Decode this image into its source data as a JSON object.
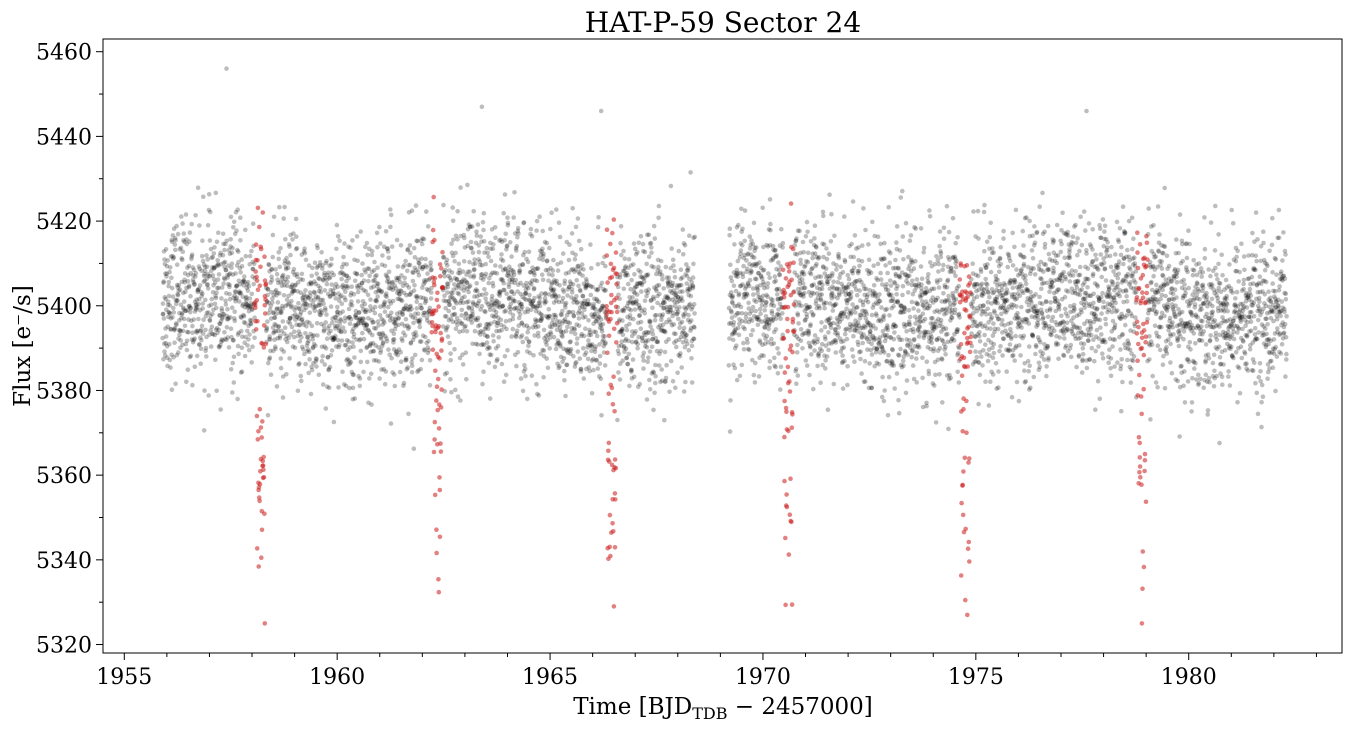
{
  "chart_data": {
    "type": "scatter",
    "title": "HAT-P-59 Sector 24",
    "xlabel": {
      "prefix": "Time [BJD",
      "subscript": "TDB",
      "suffix": " − 2457000]"
    },
    "ylabel": "Flux [e⁻/s]",
    "xlim": [
      1954.5,
      1983.6
    ],
    "ylim": [
      5318,
      5463
    ],
    "x_ticks": [
      1955,
      1960,
      1965,
      1970,
      1975,
      1980
    ],
    "x_tick_labels": [
      "1955",
      "1960",
      "1965",
      "1970",
      "1975",
      "1980"
    ],
    "y_ticks": [
      5320,
      5340,
      5360,
      5380,
      5400,
      5420,
      5440,
      5460
    ],
    "y_tick_labels": [
      "5320",
      "5340",
      "5360",
      "5380",
      "5400",
      "5420",
      "5440",
      "5460"
    ],
    "x_minor_step": 1,
    "y_minor_step": 10,
    "grid": false,
    "legend": "none",
    "series": [
      {
        "color": "#000000",
        "segments": [
          [
            1955.9,
            1968.4
          ],
          [
            1969.2,
            1982.3
          ]
        ],
        "cadence_days": 0.00139,
        "baseline_flux": 5400,
        "scatter_sigma": 9
      },
      {
        "color": "#cc1a1a",
        "transit_times": [
          1958.2,
          1962.35,
          1966.45,
          1970.6,
          1974.75,
          1978.9
        ],
        "transit_half_width_days": 0.13,
        "transit_depth": 60
      }
    ],
    "sample_points": [
      {
        "x": 1957.4,
        "y": 5456
      },
      {
        "x": 1963.4,
        "y": 5447
      },
      {
        "x": 1966.2,
        "y": 5446
      },
      {
        "x": 1977.6,
        "y": 5446
      },
      {
        "x": 1958.3,
        "y": 5325
      },
      {
        "x": 1966.5,
        "y": 5329
      },
      {
        "x": 1978.9,
        "y": 5325
      },
      {
        "x": 1974.8,
        "y": 5327
      }
    ]
  }
}
